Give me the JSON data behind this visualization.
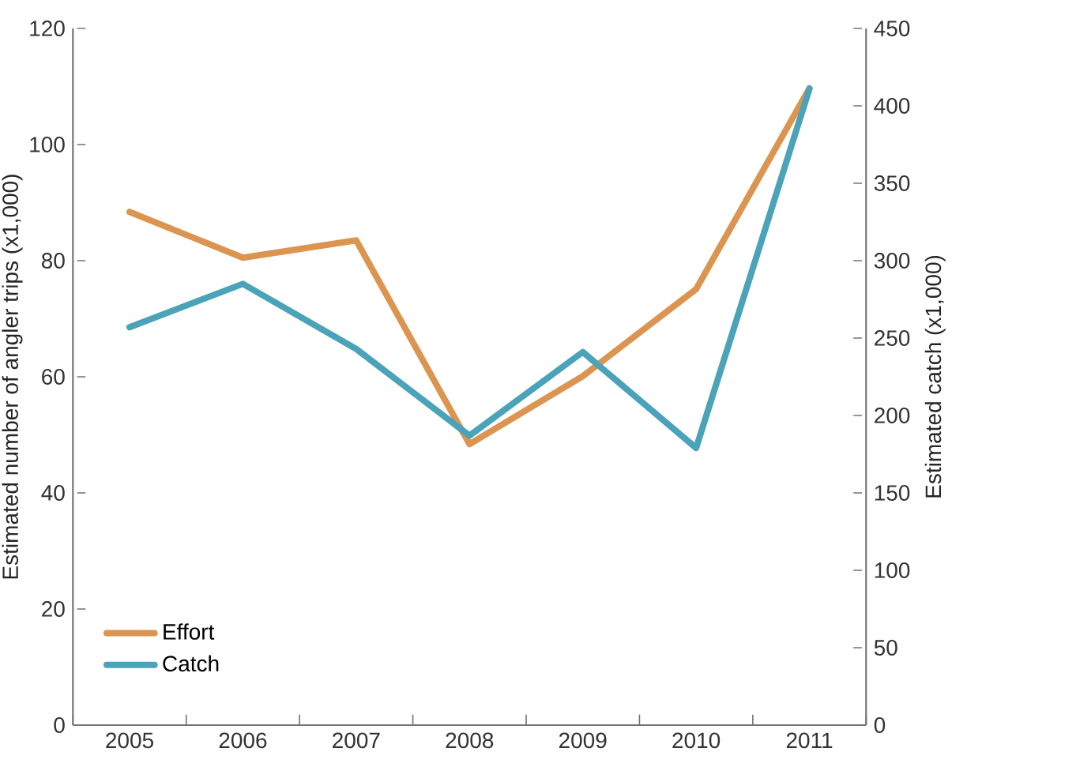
{
  "chart_data": {
    "type": "line",
    "ylabel": "Estimated number of angler trips (x1,000)",
    "y2label": "Estimated catch (x1,000)",
    "categories": [
      "2005",
      "2006",
      "2007",
      "2008",
      "2009",
      "2010",
      "2011"
    ],
    "series": [
      {
        "name": "Effort",
        "color": "#dc9550",
        "values": [
          88.4,
          80.5,
          83.5,
          48.4,
          60.1,
          75.1,
          109.7
        ]
      },
      {
        "name": "Catch",
        "color": "#4aa3b8",
        "axis": "y2",
        "values": [
          257,
          285,
          243,
          187,
          241,
          179,
          411
        ]
      }
    ],
    "ylim": [
      0,
      120
    ],
    "yticks": [
      0,
      20,
      40,
      60,
      80,
      100,
      120
    ],
    "y2lim": [
      0,
      450
    ],
    "y2ticks": [
      0,
      50,
      100,
      150,
      200,
      250,
      300,
      350,
      400,
      450
    ],
    "legend": "bottom left",
    "marker": "none",
    "line_style": "solid",
    "grid": false
  }
}
